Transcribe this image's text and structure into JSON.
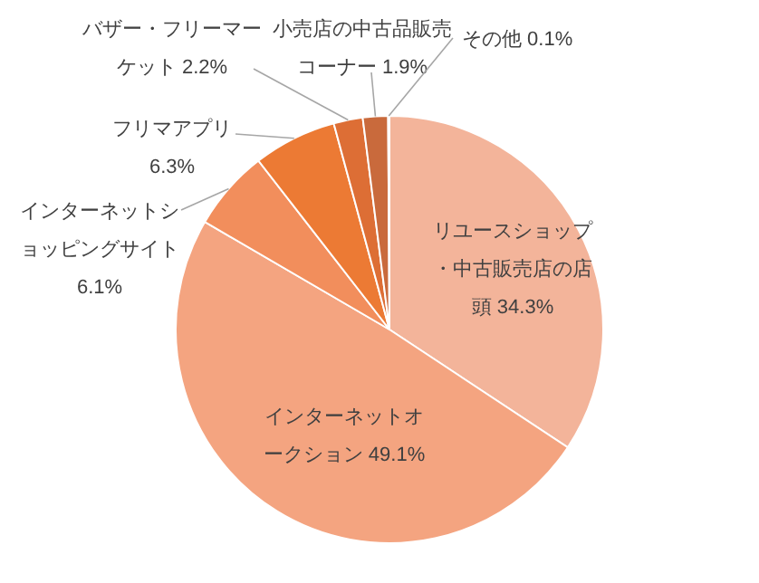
{
  "chart_data": {
    "type": "pie",
    "categories": [
      "リユースショップ・中古販売店の店頭",
      "インターネットオークション",
      "インターネットショッピングサイト",
      "フリマアプリ",
      "バザー・フリーマーケット",
      "小売店の中古品販売コーナー",
      "その他"
    ],
    "values": [
      34.3,
      49.1,
      6.1,
      6.3,
      2.2,
      1.9,
      0.1
    ],
    "value_labels": [
      "34.3%",
      "49.1%",
      "6.1%",
      "6.3%",
      "2.2%",
      "1.9%",
      "0.1%"
    ],
    "colors": [
      "#f3b49a",
      "#f4a480",
      "#f28e5c",
      "#ec7a34",
      "#dd6e35",
      "#c96a3c",
      "#b5583a"
    ]
  }
}
